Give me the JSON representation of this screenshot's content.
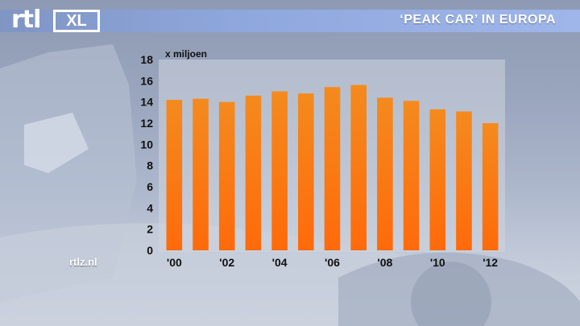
{
  "header": {
    "logo_text": "rtl",
    "logo_badge": "XL",
    "title": "‘PEAK CAR’ IN EUROPA"
  },
  "source_label": "rtlz.nl",
  "colors": {
    "bar_top": "#f48a1e",
    "bar_bottom": "#ff6a0a",
    "header_bar": "#8ea7dc"
  },
  "chart_data": {
    "type": "bar",
    "title": "‘PEAK CAR’ IN EUROPA",
    "ylabel": "x miljoen",
    "categories": [
      "2000",
      "2001",
      "2002",
      "2003",
      "2004",
      "2005",
      "2006",
      "2007",
      "2008",
      "2009",
      "2010",
      "2011",
      "2012"
    ],
    "x_tick_labels": [
      "'00",
      "",
      "'02",
      "",
      "'04",
      "",
      "'06",
      "",
      "'08",
      "",
      "'10",
      "",
      "'12"
    ],
    "values": [
      14.2,
      14.3,
      14.0,
      14.6,
      15.0,
      14.8,
      15.4,
      15.6,
      14.4,
      14.1,
      13.3,
      13.1,
      12.0
    ],
    "ylim": [
      0,
      18
    ],
    "yticks": [
      0,
      2,
      4,
      6,
      8,
      10,
      12,
      14,
      16,
      18
    ],
    "grid": false,
    "legend": "none"
  }
}
